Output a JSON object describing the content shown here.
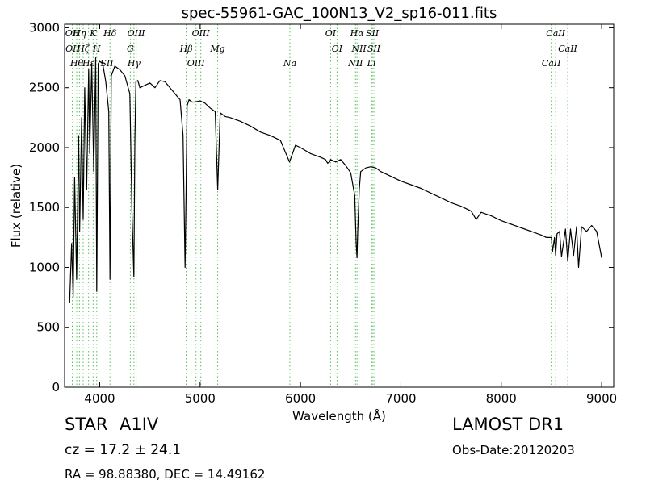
{
  "chart_data": {
    "type": "line",
    "title": "spec-55961-GAC_100N13_V2_sp16-011.fits",
    "xlabel": "Wavelength (Å)",
    "ylabel": "Flux (relative)",
    "xlim": [
      3650,
      9120
    ],
    "ylim": [
      0,
      3030
    ],
    "xticks": [
      4000,
      5000,
      6000,
      7000,
      8000,
      9000
    ],
    "yticks": [
      0,
      500,
      1000,
      1500,
      2000,
      2500,
      3000
    ],
    "grid": false,
    "line_color": "#000000",
    "marker_color": "#5bbf5b",
    "series": [
      {
        "x": [
          3700,
          3720,
          3735,
          3750,
          3770,
          3790,
          3800,
          3820,
          3835,
          3850,
          3870,
          3890,
          3900,
          3920,
          3940,
          3960,
          3970,
          3985,
          4000,
          4030,
          4060,
          4090,
          4102,
          4115,
          4150,
          4200,
          4250,
          4300,
          4320,
          4340,
          4350,
          4360,
          4380,
          4400,
          4450,
          4500,
          4550,
          4600,
          4650,
          4700,
          4750,
          4800,
          4830,
          4850,
          4860,
          4870,
          4890,
          4920,
          4950,
          5000,
          5050,
          5100,
          5150,
          5175,
          5200,
          5250,
          5300,
          5400,
          5500,
          5600,
          5700,
          5800,
          5890,
          5950,
          6000,
          6100,
          6200,
          6250,
          6270,
          6290,
          6300,
          6350,
          6400,
          6450,
          6500,
          6540,
          6555,
          6563,
          6570,
          6585,
          6600,
          6650,
          6700,
          6750,
          6800,
          6900,
          7000,
          7100,
          7200,
          7300,
          7400,
          7500,
          7600,
          7700,
          7750,
          7800,
          7900,
          8000,
          8100,
          8200,
          8300,
          8400,
          8450,
          8480,
          8500,
          8510,
          8530,
          8542,
          8555,
          8580,
          8600,
          8640,
          8662,
          8690,
          8720,
          8750,
          8770,
          8800,
          8850,
          8900,
          8950,
          9000
        ],
        "y": [
          700,
          1200,
          750,
          1750,
          900,
          2100,
          1300,
          2250,
          1400,
          2500,
          1650,
          2650,
          1950,
          2700,
          1800,
          2750,
          800,
          2700,
          2720,
          2700,
          2550,
          2300,
          900,
          2600,
          2680,
          2650,
          2600,
          2450,
          1500,
          920,
          2050,
          2550,
          2560,
          2500,
          2520,
          2540,
          2500,
          2560,
          2550,
          2500,
          2450,
          2400,
          2100,
          1000,
          1600,
          2350,
          2400,
          2380,
          2380,
          2390,
          2370,
          2330,
          2300,
          1650,
          2290,
          2260,
          2250,
          2220,
          2180,
          2130,
          2100,
          2060,
          1880,
          2020,
          2000,
          1950,
          1920,
          1900,
          1870,
          1880,
          1900,
          1880,
          1900,
          1850,
          1790,
          1600,
          1200,
          1080,
          1300,
          1650,
          1800,
          1830,
          1840,
          1830,
          1800,
          1760,
          1720,
          1690,
          1660,
          1620,
          1580,
          1540,
          1510,
          1470,
          1400,
          1460,
          1430,
          1390,
          1360,
          1330,
          1300,
          1270,
          1250,
          1250,
          1250,
          1130,
          1250,
          1100,
          1280,
          1300,
          1090,
          1320,
          1050,
          1320,
          1100,
          1340,
          1000,
          1340,
          1300,
          1350,
          1300,
          1080
        ]
      }
    ],
    "lines": [
      {
        "wl": 3727,
        "label": "OII"
      },
      {
        "wl": 3730,
        "label": "OII"
      },
      {
        "wl": 3771,
        "label": "Hθ"
      },
      {
        "wl": 3798,
        "label": "Hη"
      },
      {
        "wl": 3835,
        "label": "Hζ"
      },
      {
        "wl": 3889,
        "label": "Hε"
      },
      {
        "wl": 3934,
        "label": "K"
      },
      {
        "wl": 3970,
        "label": "H"
      },
      {
        "wl": 4072,
        "label": "SII"
      },
      {
        "wl": 4102,
        "label": "Hδ"
      },
      {
        "wl": 4305,
        "label": "G"
      },
      {
        "wl": 4341,
        "label": "Hγ"
      },
      {
        "wl": 4363,
        "label": "OIII"
      },
      {
        "wl": 4861,
        "label": "Hβ"
      },
      {
        "wl": 4959,
        "label": "OIII"
      },
      {
        "wl": 5007,
        "label": "OIII"
      },
      {
        "wl": 5175,
        "label": "Mg"
      },
      {
        "wl": 5894,
        "label": "Na"
      },
      {
        "wl": 6300,
        "label": "OI"
      },
      {
        "wl": 6364,
        "label": "OI"
      },
      {
        "wl": 6548,
        "label": "NII"
      },
      {
        "wl": 6563,
        "label": "Hα"
      },
      {
        "wl": 6583,
        "label": "NII"
      },
      {
        "wl": 6707,
        "label": "Li"
      },
      {
        "wl": 6716,
        "label": "SII"
      },
      {
        "wl": 6731,
        "label": "SII"
      },
      {
        "wl": 8498,
        "label": "CaII"
      },
      {
        "wl": 8542,
        "label": "CaII"
      },
      {
        "wl": 8662,
        "label": "CaII"
      }
    ]
  },
  "annotations": {
    "class_label": "STAR",
    "subclass": "A1IV",
    "cz_text": "cz = 17.2  ± 24.1",
    "survey": "LAMOST DR1",
    "obs_date": "Obs-Date:20120203",
    "coords": "RA = 98.88380, DEC = 14.49162"
  }
}
